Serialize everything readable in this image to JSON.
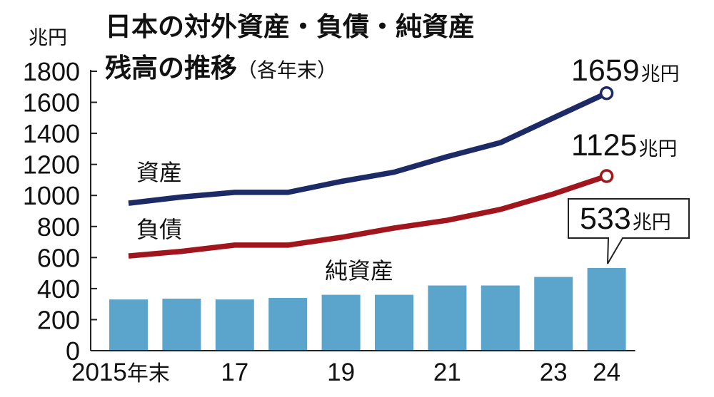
{
  "chart_data": {
    "type": "bar+line",
    "title_line1": "日本の対外資産・負債・純資産",
    "title_line2": "残高の推移",
    "title_suffix": "（各年末）",
    "unit": "兆円",
    "ylim": [
      0,
      1800
    ],
    "yticks": [
      0,
      200,
      400,
      600,
      800,
      1000,
      1200,
      1400,
      1600,
      1800
    ],
    "x": [
      2015,
      2016,
      2017,
      2018,
      2019,
      2020,
      2021,
      2022,
      2023,
      2024
    ],
    "xtick_labels": [
      "2015",
      "",
      "17",
      "",
      "19",
      "",
      "21",
      "",
      "23",
      "24"
    ],
    "first_label_suffix": "年末",
    "grid": false,
    "series": [
      {
        "name": "資産",
        "type": "line",
        "color": "#1c2a66",
        "values": [
          950,
          990,
          1020,
          1020,
          1090,
          1150,
          1250,
          1340,
          1500,
          1659
        ]
      },
      {
        "name": "負債",
        "type": "line",
        "color": "#a0161c",
        "values": [
          610,
          640,
          680,
          680,
          730,
          790,
          840,
          910,
          1010,
          1125
        ]
      },
      {
        "name": "純資産",
        "type": "bar",
        "color": "#5ba5cc",
        "values": [
          330,
          335,
          330,
          340,
          360,
          360,
          420,
          420,
          475,
          533
        ]
      }
    ],
    "annotations": [
      {
        "series": "資産",
        "value": "1659",
        "unit": "兆円"
      },
      {
        "series": "負債",
        "value": "1125",
        "unit": "兆円"
      },
      {
        "series": "純資産",
        "value": "533",
        "unit": "兆円",
        "boxed": true
      }
    ]
  }
}
